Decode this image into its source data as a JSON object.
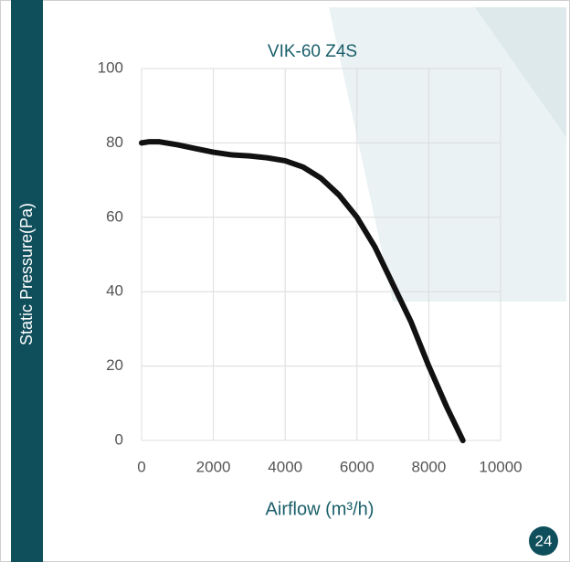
{
  "chart_data": {
    "type": "line",
    "title": "VIK-60 Z4S",
    "xlabel": "Airflow (m³/h)",
    "ylabel": "Static Pressure(Pa)",
    "page_number": "24",
    "x": [
      0,
      200,
      500,
      1000,
      1500,
      2000,
      2500,
      3000,
      3500,
      4000,
      4500,
      5000,
      5500,
      6000,
      6500,
      7000,
      7500,
      8000,
      8500,
      8950
    ],
    "series": [
      {
        "name": "VIK-60 Z4S",
        "color": "#111111",
        "values": [
          80,
          80.3,
          80.3,
          79.5,
          78.5,
          77.5,
          76.8,
          76.5,
          76,
          75.2,
          73.5,
          70.5,
          66,
          60,
          52,
          42,
          32,
          20,
          9,
          0
        ]
      }
    ],
    "xlim": [
      0,
      10000
    ],
    "xticks": [
      0,
      2000,
      4000,
      6000,
      8000,
      10000
    ],
    "ylim": [
      0,
      100
    ],
    "yticks": [
      0,
      20,
      40,
      60,
      80,
      100
    ],
    "grid": true
  }
}
